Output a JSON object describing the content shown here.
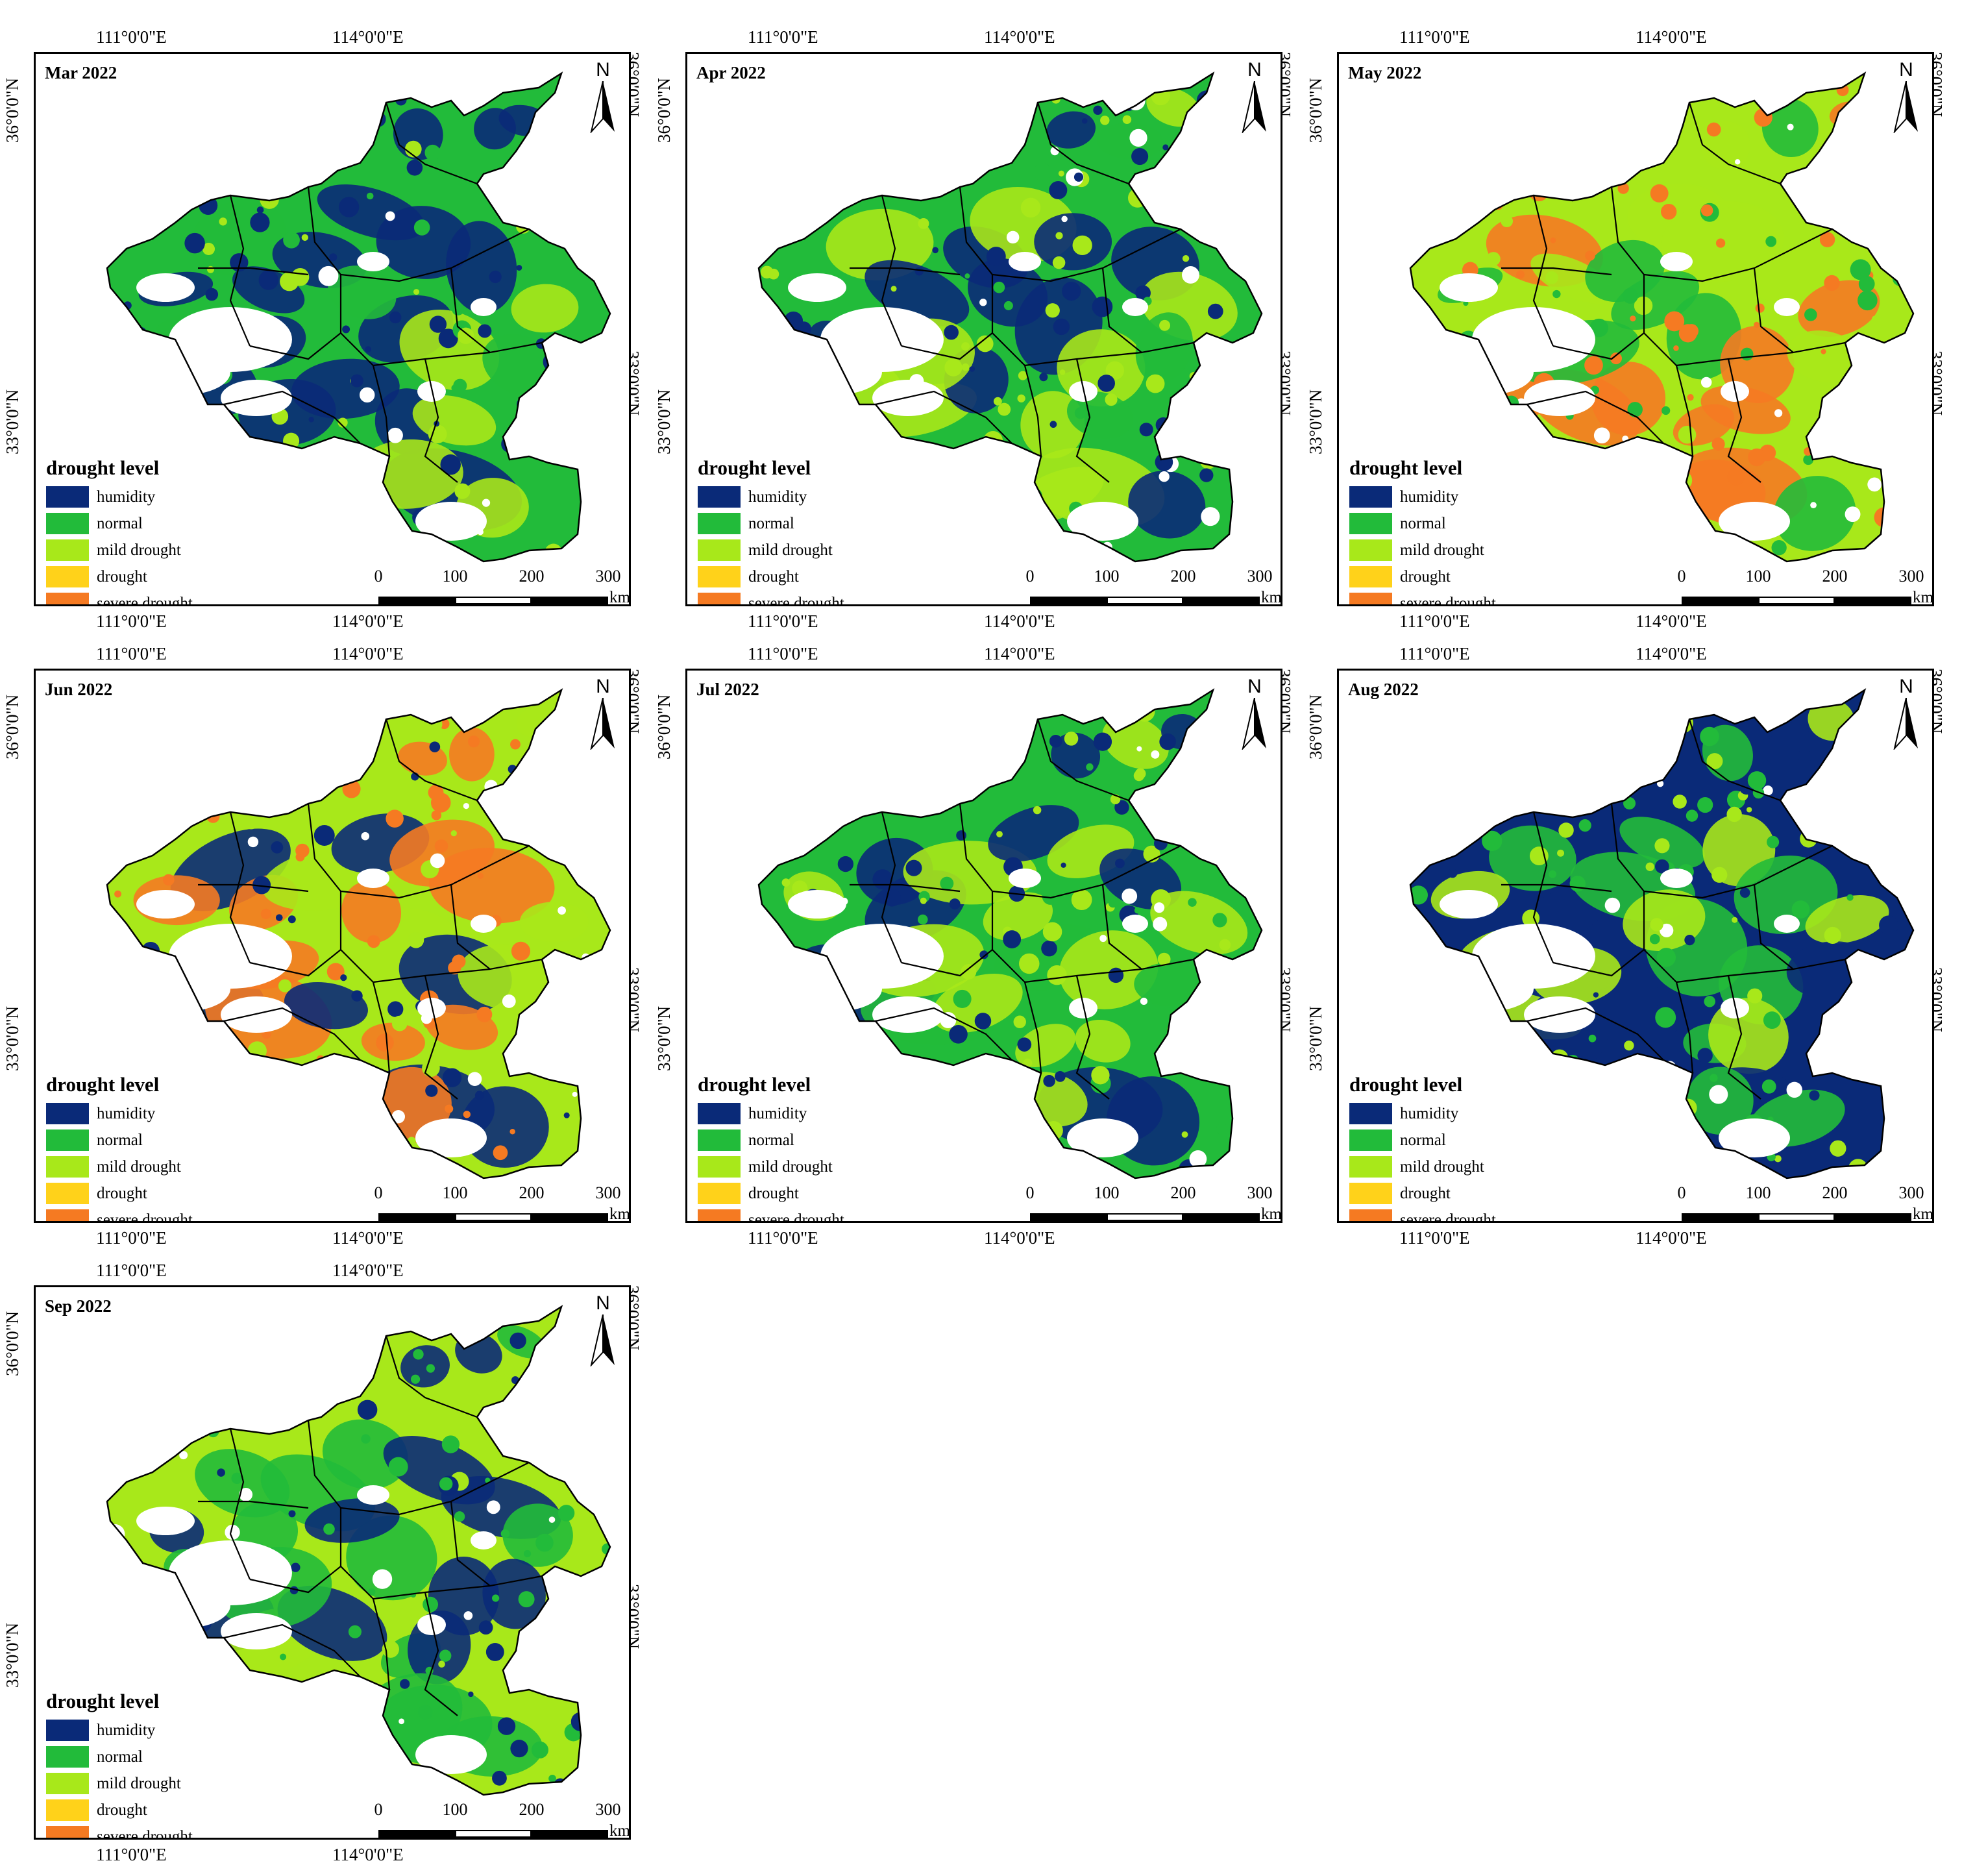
{
  "coords": {
    "lon_left": "111°0'0\"E",
    "lon_right": "114°0'0\"E",
    "lat_upper": "36°0'0\"N",
    "lat_lower": "33°0'0\"N"
  },
  "north_label": "N",
  "legend": {
    "title": "drought level",
    "classes": [
      {
        "label": "humidity",
        "color": "#0a2a78"
      },
      {
        "label": "normal",
        "color": "#22bb3a"
      },
      {
        "label": "mild drought",
        "color": "#a8e81a"
      },
      {
        "label": "drought",
        "color": "#ffd21a"
      },
      {
        "label": "severe drought",
        "color": "#f57a22"
      }
    ]
  },
  "scale_bar": {
    "ticks": [
      "0",
      "100",
      "200",
      "300"
    ],
    "unit": "km"
  },
  "panels": [
    {
      "title": "Mar 2022",
      "dominant": [
        "normal",
        "humidity",
        "mild drought"
      ]
    },
    {
      "title": "Apr 2022",
      "dominant": [
        "normal",
        "mild drought",
        "humidity"
      ]
    },
    {
      "title": "May 2022",
      "dominant": [
        "mild drought",
        "severe drought",
        "normal"
      ]
    },
    {
      "title": "Jun 2022",
      "dominant": [
        "mild drought",
        "severe drought",
        "humidity"
      ]
    },
    {
      "title": "Jul 2022",
      "dominant": [
        "normal",
        "mild drought",
        "humidity"
      ]
    },
    {
      "title": "Aug 2022",
      "dominant": [
        "humidity",
        "normal",
        "mild drought"
      ]
    },
    {
      "title": "Sep 2022",
      "dominant": [
        "mild drought",
        "normal",
        "humidity"
      ]
    }
  ]
}
